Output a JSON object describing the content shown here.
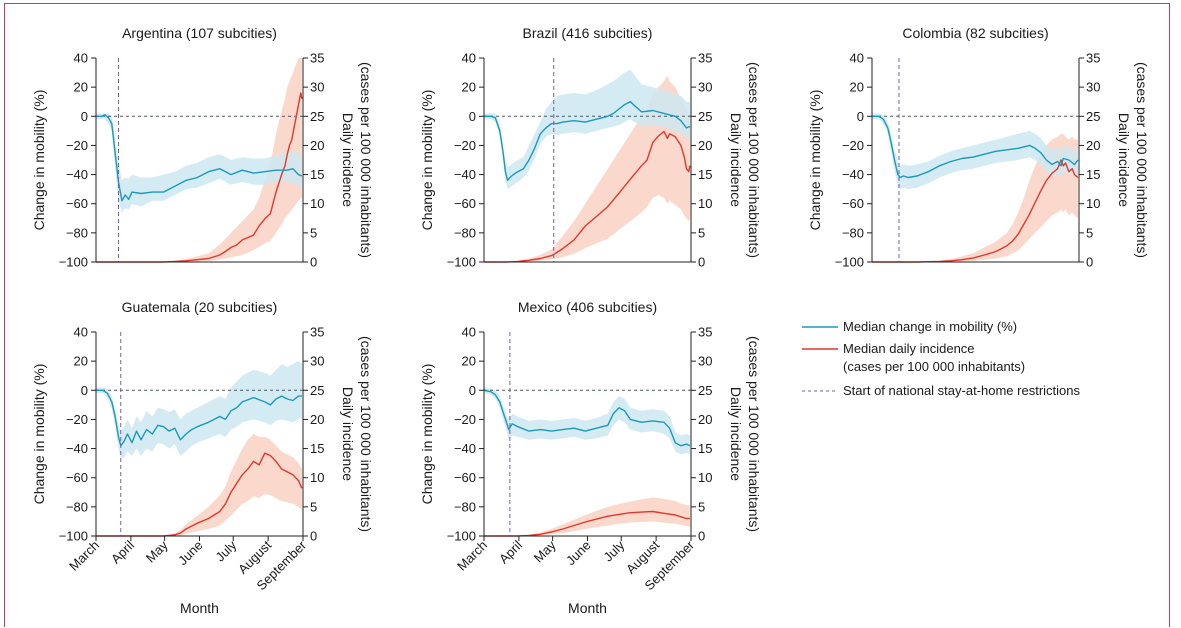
{
  "figure": {
    "y_left_label": "Change in mobility (%)",
    "y_right_label_line1": "Daily incidence",
    "y_right_label_line2": "(cases per 100 000 inhabitants)",
    "x_label": "Month",
    "months": [
      "March",
      "April",
      "May",
      "June",
      "July",
      "August",
      "September"
    ],
    "left_ticks": [
      40,
      20,
      0,
      -20,
      -40,
      -60,
      -80,
      -100
    ],
    "right_ticks": [
      35,
      30,
      25,
      20,
      15,
      10,
      5,
      0
    ],
    "colors": {
      "mobility": "#1a9ab8",
      "mobility_band": "#cde7f1",
      "incidence": "#e2372e",
      "incidence_band": "#f9d2c3",
      "restriction": "#7a5cb0",
      "frame": "#c8386e"
    }
  },
  "legend": {
    "mobility": "Median change in mobility (%)",
    "incidence_line1": "Median daily incidence",
    "incidence_line2": "(cases per 100 000 inhabitants)",
    "restriction": "Start of national stay-at-home restrictions"
  },
  "chart_data": [
    {
      "type": "line",
      "title": "Argentina (107 subcities)",
      "restriction_day": 20,
      "x_unit": "days since 1 March",
      "mobility": {
        "name": "Median change in mobility (%)",
        "x": [
          0,
          5,
          8,
          11,
          14,
          17,
          20,
          23,
          26,
          29,
          32,
          40,
          50,
          60,
          70,
          80,
          90,
          100,
          110,
          120,
          130,
          140,
          150,
          160,
          170,
          175,
          180,
          183
        ],
        "y": [
          0,
          0,
          1,
          -1,
          -5,
          -25,
          -45,
          -58,
          -54,
          -57,
          -52,
          -53,
          -52,
          -52,
          -48,
          -44,
          -42,
          -38,
          -36,
          -40,
          -37,
          -39,
          -38,
          -37,
          -37,
          -36,
          -40,
          -41
        ],
        "lo": [
          -2,
          -2,
          -2,
          -5,
          -10,
          -35,
          -58,
          -66,
          -63,
          -64,
          -60,
          -62,
          -58,
          -58,
          -54,
          -50,
          -49,
          -46,
          -43,
          -47,
          -45,
          -47,
          -47,
          -45,
          -45,
          -46,
          -48,
          -49
        ],
        "hi": [
          2,
          2,
          2,
          2,
          0,
          -15,
          -32,
          -44,
          -42,
          -43,
          -40,
          -42,
          -42,
          -40,
          -38,
          -34,
          -32,
          -28,
          -26,
          -30,
          -28,
          -29,
          -29,
          -27,
          -25,
          -24,
          -25,
          -28
        ]
      },
      "incidence": {
        "name": "Median daily incidence (cases per 100 000 inhabitants)",
        "x": [
          0,
          40,
          60,
          70,
          80,
          90,
          100,
          110,
          115,
          120,
          125,
          130,
          140,
          145,
          150,
          155,
          160,
          165,
          168,
          170,
          172,
          174,
          176,
          178,
          180,
          182,
          183
        ],
        "y": [
          0,
          0,
          0,
          0.1,
          0.2,
          0.4,
          0.6,
          1.2,
          1.8,
          2.5,
          2.9,
          3.8,
          4.6,
          6.2,
          7.4,
          8.3,
          12,
          15,
          16.5,
          18.5,
          20,
          21,
          23,
          25,
          27,
          29,
          28
        ],
        "lo": [
          0,
          0,
          0,
          0,
          0,
          0.1,
          0.2,
          0.4,
          0.6,
          0.8,
          1.0,
          1.2,
          2.0,
          2.6,
          3.2,
          3.6,
          5.0,
          6.5,
          7.5,
          8.0,
          8.5,
          9.0,
          9.5,
          10,
          10.5,
          11,
          11
        ],
        "hi": [
          0,
          0,
          0,
          0.2,
          0.5,
          1.0,
          1.5,
          3.0,
          4.0,
          5.0,
          6.0,
          7.0,
          9.0,
          11,
          14,
          17,
          22,
          26,
          28,
          30,
          31,
          32,
          33,
          34,
          35,
          35,
          35
        ]
      }
    },
    {
      "type": "line",
      "title": "Brazil (416 subcities)",
      "restriction_day": 62,
      "x_unit": "days since 1 March",
      "mobility": {
        "name": "Median change in mobility (%)",
        "x": [
          0,
          6,
          10,
          14,
          17,
          19,
          21,
          23,
          26,
          30,
          35,
          40,
          45,
          50,
          55,
          60,
          65,
          70,
          80,
          90,
          100,
          110,
          115,
          120,
          125,
          130,
          140,
          150,
          160,
          170,
          175,
          180,
          183
        ],
        "y": [
          0,
          0,
          -1,
          -10,
          -25,
          -38,
          -44,
          -42,
          -40,
          -38,
          -36,
          -30,
          -22,
          -12,
          -8,
          -5,
          -5,
          -4,
          -3,
          -4,
          -2,
          0,
          2,
          5,
          8,
          10,
          3,
          4,
          2,
          0,
          -3,
          -8,
          -7
        ],
        "lo": [
          -2,
          -2,
          -4,
          -14,
          -30,
          -44,
          -50,
          -49,
          -47,
          -45,
          -42,
          -37,
          -29,
          -19,
          -14,
          -12,
          -13,
          -12,
          -11,
          -12,
          -10,
          -8,
          -7,
          -6,
          -4,
          -2,
          -7,
          -6,
          -7,
          -10,
          -12,
          -15,
          -14
        ],
        "hi": [
          2,
          2,
          2,
          -5,
          -20,
          -30,
          -35,
          -34,
          -32,
          -30,
          -28,
          -20,
          -12,
          -4,
          5,
          10,
          14,
          15,
          16,
          15,
          18,
          22,
          24,
          27,
          30,
          32,
          22,
          20,
          18,
          15,
          14,
          10,
          10
        ]
      },
      "incidence": {
        "name": "Median daily incidence (cases per 100 000 inhabitants)",
        "x": [
          0,
          20,
          30,
          40,
          50,
          60,
          62,
          70,
          80,
          90,
          100,
          110,
          120,
          130,
          140,
          145,
          150,
          155,
          160,
          163,
          165,
          170,
          175,
          178,
          180,
          182,
          183
        ],
        "y": [
          0,
          0,
          0.1,
          0.3,
          0.6,
          1.1,
          1.3,
          2.3,
          3.8,
          6.2,
          7.8,
          9.5,
          11.8,
          14.2,
          16.5,
          17.5,
          20.5,
          21.6,
          22.4,
          21.2,
          22,
          21.5,
          20,
          18,
          16,
          15.5,
          16.5
        ],
        "lo": [
          0,
          0,
          0,
          0.1,
          0.2,
          0.4,
          0.5,
          0.8,
          1.4,
          2.4,
          3.2,
          4.0,
          5.5,
          7.0,
          8.5,
          9.5,
          11,
          11.5,
          11,
          10,
          10.5,
          9.8,
          9,
          8,
          7.5,
          7,
          7.5
        ],
        "hi": [
          0,
          0,
          0.2,
          0.6,
          1.2,
          2.2,
          2.6,
          4.5,
          7,
          10,
          13,
          16,
          19,
          22,
          25,
          26,
          29,
          30,
          31,
          32,
          31,
          30,
          28,
          27,
          26,
          25,
          26
        ]
      }
    },
    {
      "type": "line",
      "title": "Colombia (82 subcities)",
      "restriction_day": 24,
      "x_unit": "days since 1 March",
      "mobility": {
        "name": "Median change in mobility (%)",
        "x": [
          0,
          6,
          10,
          14,
          17,
          20,
          23,
          25,
          28,
          32,
          40,
          50,
          60,
          70,
          80,
          90,
          100,
          110,
          120,
          130,
          140,
          145,
          150,
          155,
          160,
          165,
          168,
          170,
          175,
          180,
          183
        ],
        "y": [
          0,
          0,
          -2,
          -8,
          -18,
          -30,
          -40,
          -42,
          -41,
          -42,
          -41,
          -38,
          -34,
          -31,
          -29,
          -28,
          -26,
          -24,
          -23,
          -22,
          -20,
          -22,
          -25,
          -30,
          -33,
          -31,
          -34,
          -29,
          -30,
          -33,
          -30
        ],
        "lo": [
          -2,
          -2,
          -5,
          -12,
          -24,
          -37,
          -48,
          -50,
          -49,
          -50,
          -49,
          -46,
          -42,
          -39,
          -37,
          -36,
          -34,
          -32,
          -31,
          -30,
          -28,
          -30,
          -33,
          -38,
          -41,
          -40,
          -42,
          -38,
          -38,
          -41,
          -38
        ],
        "hi": [
          2,
          2,
          1,
          -4,
          -12,
          -23,
          -31,
          -34,
          -33,
          -34,
          -33,
          -31,
          -27,
          -24,
          -22,
          -20,
          -18,
          -16,
          -14,
          -12,
          -10,
          -12,
          -15,
          -20,
          -23,
          -21,
          -25,
          -20,
          -21,
          -24,
          -21
        ]
      },
      "incidence": {
        "name": "Median daily incidence (cases per 100 000 inhabitants)",
        "x": [
          0,
          40,
          60,
          70,
          80,
          90,
          100,
          110,
          120,
          125,
          130,
          135,
          140,
          145,
          150,
          155,
          160,
          165,
          168,
          170,
          172,
          175,
          178,
          180,
          183
        ],
        "y": [
          0,
          0,
          0.1,
          0.2,
          0.4,
          0.7,
          1.2,
          1.8,
          2.8,
          3.6,
          4.8,
          6.5,
          8.2,
          10.2,
          12.2,
          14,
          15.2,
          16,
          17.5,
          16.5,
          17,
          15.5,
          16,
          15,
          14.5
        ],
        "lo": [
          0,
          0,
          0,
          0,
          0.1,
          0.2,
          0.4,
          0.6,
          1.0,
          1.5,
          2.0,
          3.0,
          4.0,
          5.0,
          6.0,
          7.0,
          8.0,
          8.5,
          9,
          8.5,
          9,
          8,
          8.5,
          8,
          7.5
        ],
        "hi": [
          0,
          0,
          0.2,
          0.5,
          1.0,
          1.5,
          2.5,
          3.5,
          5.0,
          6.5,
          8.5,
          11,
          14,
          16.5,
          18.5,
          20,
          21,
          21.5,
          22,
          22,
          21.5,
          21,
          21.5,
          21,
          21
        ]
      }
    },
    {
      "type": "line",
      "title": "Guatemala (20 subcities)",
      "restriction_day": 22,
      "x_unit": "days since 1 March",
      "mobility": {
        "name": "Median change in mobility (%)",
        "x": [
          0,
          6,
          10,
          14,
          17,
          20,
          22,
          25,
          28,
          32,
          36,
          40,
          45,
          50,
          55,
          60,
          65,
          70,
          75,
          80,
          85,
          90,
          100,
          110,
          115,
          120,
          125,
          130,
          140,
          150,
          155,
          160,
          165,
          170,
          175,
          180,
          183
        ],
        "y": [
          0,
          0,
          -2,
          -8,
          -18,
          -32,
          -38,
          -35,
          -30,
          -36,
          -28,
          -34,
          -27,
          -30,
          -24,
          -25,
          -28,
          -26,
          -34,
          -30,
          -27,
          -25,
          -22,
          -18,
          -20,
          -14,
          -12,
          -8,
          -5,
          -8,
          -10,
          -6,
          -4,
          -6,
          -7,
          -4,
          -4
        ],
        "lo": [
          -2,
          -2,
          -5,
          -13,
          -24,
          -40,
          -47,
          -46,
          -42,
          -45,
          -40,
          -45,
          -40,
          -42,
          -36,
          -37,
          -40,
          -37,
          -45,
          -42,
          -38,
          -36,
          -33,
          -30,
          -32,
          -27,
          -25,
          -22,
          -20,
          -22,
          -24,
          -21,
          -20,
          -21,
          -22,
          -20,
          -19
        ],
        "hi": [
          2,
          2,
          1,
          -4,
          -12,
          -24,
          -28,
          -25,
          -20,
          -26,
          -18,
          -22,
          -14,
          -18,
          -12,
          -13,
          -15,
          -13,
          -20,
          -16,
          -14,
          -12,
          -8,
          -4,
          -6,
          2,
          6,
          10,
          14,
          12,
          10,
          14,
          18,
          16,
          18,
          20,
          18
        ]
      },
      "incidence": {
        "name": "Median daily incidence (cases per 100 000 inhabitants)",
        "x": [
          0,
          60,
          70,
          75,
          80,
          90,
          100,
          110,
          115,
          120,
          125,
          130,
          135,
          140,
          145,
          150,
          155,
          160,
          165,
          170,
          175,
          180,
          183
        ],
        "y": [
          0,
          0,
          0.2,
          0.5,
          1.2,
          2.2,
          3.0,
          4.2,
          5.5,
          7.5,
          9.0,
          10.5,
          11.5,
          12.8,
          12.2,
          14.2,
          13.8,
          12.8,
          11.5,
          11,
          10.5,
          9.5,
          8.2
        ],
        "lo": [
          0,
          0,
          0,
          0.1,
          0.4,
          0.8,
          1.2,
          1.8,
          2.6,
          3.5,
          4.5,
          5.5,
          6.0,
          6.8,
          6.5,
          7.2,
          7.0,
          6.5,
          6.0,
          5.8,
          5.5,
          5.0,
          4.5
        ],
        "hi": [
          0,
          0,
          0.4,
          1.0,
          2.0,
          3.5,
          5.0,
          7.0,
          8.5,
          11,
          13,
          15,
          16.5,
          17.5,
          17,
          17,
          16.5,
          15.5,
          14.5,
          14,
          13.5,
          12.5,
          11.5
        ]
      }
    },
    {
      "type": "line",
      "title": "Mexico (406 subcities)",
      "restriction_day": 23,
      "x_unit": "days since 1 March",
      "mobility": {
        "name": "Median change in mobility (%)",
        "x": [
          0,
          6,
          10,
          14,
          17,
          20,
          22,
          25,
          30,
          40,
          50,
          60,
          70,
          80,
          90,
          100,
          110,
          115,
          120,
          125,
          130,
          140,
          150,
          160,
          165,
          170,
          175,
          180,
          183
        ],
        "y": [
          0,
          -1,
          -3,
          -8,
          -15,
          -22,
          -27,
          -23,
          -25,
          -28,
          -27,
          -28,
          -27,
          -26,
          -28,
          -26,
          -24,
          -16,
          -12,
          -14,
          -20,
          -22,
          -21,
          -22,
          -26,
          -36,
          -38,
          -37,
          -38
        ],
        "lo": [
          -2,
          -3,
          -6,
          -12,
          -20,
          -28,
          -34,
          -31,
          -32,
          -34,
          -33,
          -34,
          -33,
          -32,
          -34,
          -33,
          -31,
          -24,
          -20,
          -22,
          -27,
          -29,
          -28,
          -30,
          -33,
          -42,
          -44,
          -43,
          -44
        ],
        "hi": [
          2,
          1,
          0,
          -4,
          -10,
          -17,
          -20,
          -16,
          -18,
          -21,
          -20,
          -21,
          -20,
          -19,
          -21,
          -19,
          -16,
          -8,
          -4,
          -6,
          -12,
          -14,
          -13,
          -14,
          -18,
          -29,
          -31,
          -30,
          -31
        ]
      },
      "incidence": {
        "name": "Median daily incidence (cases per 100 000 inhabitants)",
        "x": [
          0,
          30,
          40,
          50,
          60,
          70,
          80,
          90,
          100,
          110,
          120,
          130,
          140,
          150,
          160,
          170,
          175,
          180,
          183
        ],
        "y": [
          0,
          0,
          0.1,
          0.3,
          0.7,
          1.2,
          1.8,
          2.4,
          2.9,
          3.4,
          3.7,
          4.0,
          4.1,
          4.2,
          3.9,
          3.6,
          3.3,
          3.0,
          3.0
        ],
        "lo": [
          0,
          0,
          0,
          0.1,
          0.3,
          0.5,
          0.8,
          1.2,
          1.5,
          1.8,
          2.1,
          2.3,
          2.4,
          2.5,
          2.3,
          2.1,
          1.9,
          1.7,
          1.6
        ],
        "hi": [
          0,
          0,
          0.2,
          0.6,
          1.2,
          2.0,
          2.8,
          3.6,
          4.3,
          5.0,
          5.5,
          5.9,
          6.3,
          6.6,
          6.4,
          6.0,
          5.6,
          5.3,
          5.2
        ]
      }
    }
  ]
}
